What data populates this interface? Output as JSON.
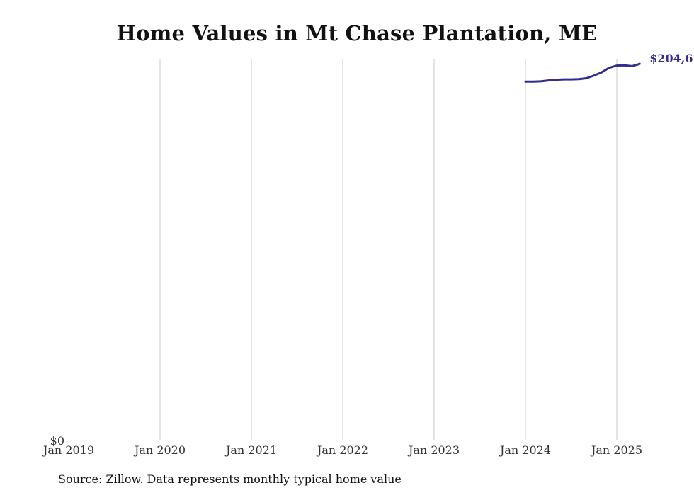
{
  "chart_data": {
    "type": "line",
    "title": "Home Values in Mt Chase Plantation, ME",
    "source": "Source: Zillow. Data represents monthly typical home value",
    "xlabel": "",
    "ylabel": "",
    "x_range": [
      "2019-01",
      "2025-04"
    ],
    "ylim": [
      0,
      207000
    ],
    "y_tick_labels": [
      "$0"
    ],
    "x_tick_labels": [
      "Jan 2019",
      "Jan 2020",
      "Jan 2021",
      "Jan 2022",
      "Jan 2023",
      "Jan 2024",
      "Jan 2025"
    ],
    "x_ticks": [
      "2019-01",
      "2020-01",
      "2021-01",
      "2022-01",
      "2023-01",
      "2024-01",
      "2025-01"
    ],
    "grid": "vertical",
    "legend": "none",
    "line_color": "#332e8c",
    "series": [
      {
        "x": [
          "2024-01",
          "2024-02",
          "2024-03",
          "2024-04",
          "2024-05",
          "2024-06",
          "2024-07",
          "2024-08",
          "2024-09",
          "2024-10",
          "2024-11",
          "2024-12",
          "2025-01",
          "2025-02",
          "2025-03",
          "2025-04"
        ],
        "values": [
          195000,
          195000,
          195100,
          195600,
          196000,
          196200,
          196200,
          196300,
          196800,
          198300,
          200000,
          202500,
          203700,
          203800,
          203400,
          204600
        ]
      }
    ],
    "end_label": "$204,6"
  }
}
